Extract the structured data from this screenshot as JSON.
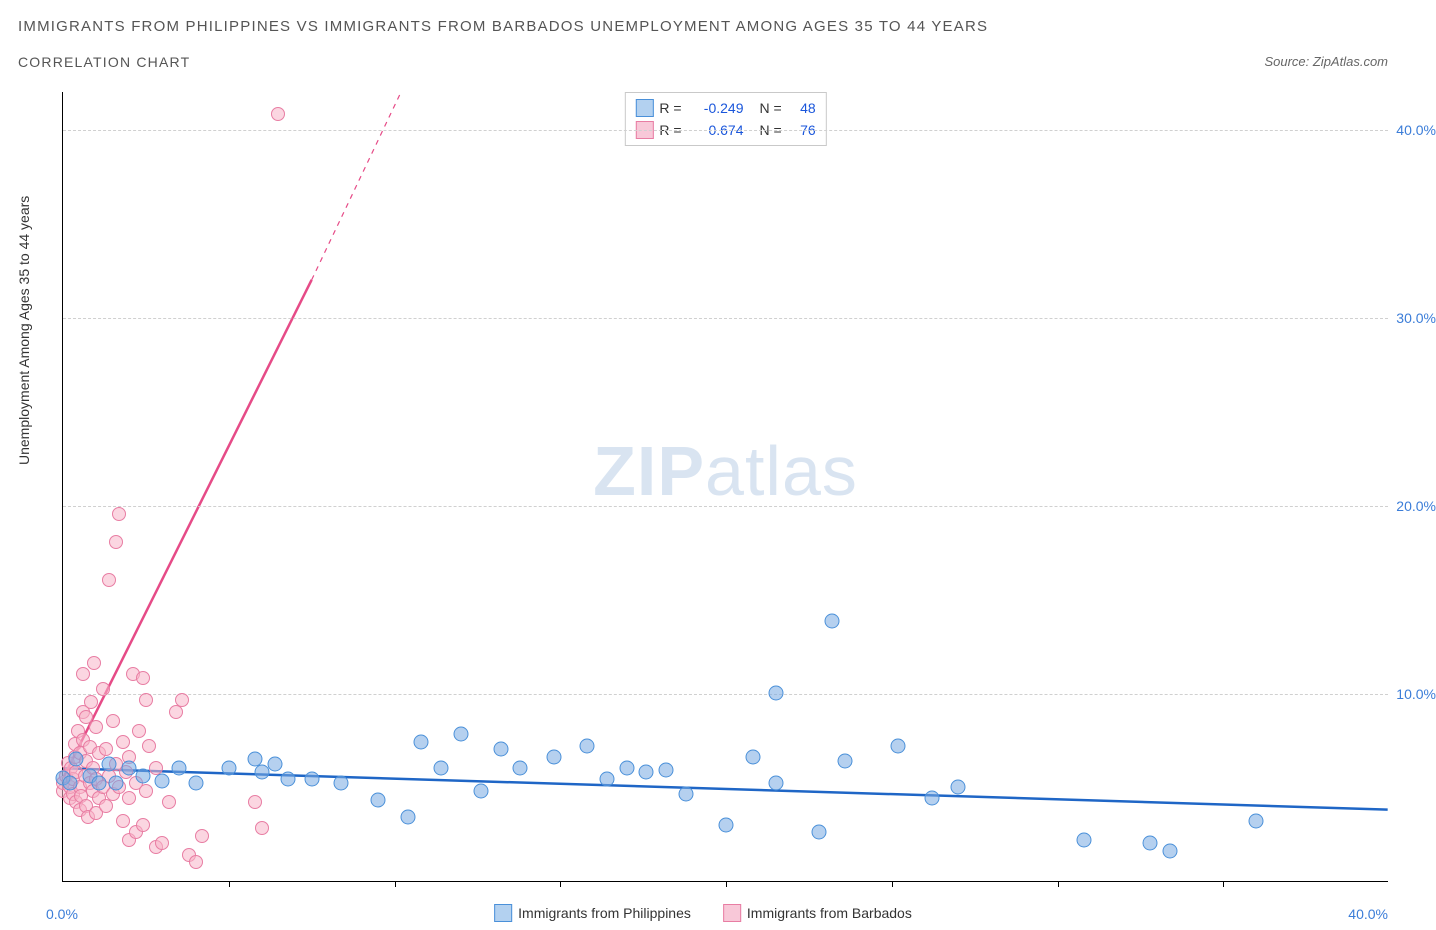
{
  "title_main": "IMMIGRANTS FROM PHILIPPINES VS IMMIGRANTS FROM BARBADOS UNEMPLOYMENT AMONG AGES 35 TO 44 YEARS",
  "title_sub": "CORRELATION CHART",
  "source_label": "Source: ZipAtlas.com",
  "y_axis_label": "Unemployment Among Ages 35 to 44 years",
  "axes": {
    "xmin": 0,
    "xmax": 40,
    "ymin": 0,
    "ymax": 42,
    "x_origin_label": "0.0%",
    "x_end_label": "40.0%",
    "y_ticks": [
      {
        "value": 10,
        "label": "10.0%"
      },
      {
        "value": 20,
        "label": "20.0%"
      },
      {
        "value": 30,
        "label": "30.0%"
      },
      {
        "value": 40,
        "label": "40.0%"
      }
    ],
    "x_tick_positions": [
      5,
      10,
      15,
      20,
      25,
      30,
      35
    ],
    "grid_color": "#d0d0d0",
    "axis_color": "#000000",
    "background_color": "#ffffff"
  },
  "legend_stats": {
    "label_r": "R =",
    "label_n": "N =",
    "series": [
      {
        "swatch": "blue",
        "r": "-0.249",
        "n": "48"
      },
      {
        "swatch": "pink",
        "r": "0.674",
        "n": "76"
      }
    ]
  },
  "bottom_legend": [
    {
      "swatch": "blue",
      "label": "Immigrants from Philippines"
    },
    {
      "swatch": "pink",
      "label": "Immigrants from Barbados"
    }
  ],
  "colors": {
    "blue_fill": "#b3d1f0",
    "blue_stroke": "#4a90d9",
    "blue_line": "#1f66c6",
    "pink_fill": "#f8c8d8",
    "pink_stroke": "#e87da3",
    "pink_line": "#e64b87",
    "tick_label": "#3b7dd8",
    "stat_value": "#1a56db",
    "text": "#333333",
    "watermark": "#d9e4f1"
  },
  "trend_lines": {
    "blue": {
      "x1": 0,
      "y1": 6.0,
      "x2": 40,
      "y2": 3.8,
      "stroke_width": 2.5
    },
    "pink_solid": {
      "x1": 0,
      "y1": 5.5,
      "x2": 7.5,
      "y2": 32.0,
      "stroke_width": 2.5
    },
    "pink_dashed": {
      "x1": 7.5,
      "y1": 32.0,
      "x2": 10.2,
      "y2": 42.0,
      "stroke_width": 1.2,
      "dash": "5,5"
    }
  },
  "series_blue": {
    "marker_color": "#b3d1f0",
    "marker_border": "#4a90d9",
    "marker_size": 15,
    "points": [
      [
        0.0,
        5.5
      ],
      [
        0.2,
        5.2
      ],
      [
        0.4,
        6.5
      ],
      [
        0.8,
        5.6
      ],
      [
        1.1,
        5.2
      ],
      [
        1.4,
        6.2
      ],
      [
        1.6,
        5.2
      ],
      [
        2.0,
        6.0
      ],
      [
        2.4,
        5.6
      ],
      [
        3.0,
        5.3
      ],
      [
        3.5,
        6.0
      ],
      [
        4.0,
        5.2
      ],
      [
        5.0,
        6.0
      ],
      [
        5.8,
        6.5
      ],
      [
        6.0,
        5.8
      ],
      [
        6.4,
        6.2
      ],
      [
        6.8,
        5.4
      ],
      [
        7.5,
        5.4
      ],
      [
        8.4,
        5.2
      ],
      [
        9.5,
        4.3
      ],
      [
        10.4,
        3.4
      ],
      [
        10.8,
        7.4
      ],
      [
        11.4,
        6.0
      ],
      [
        12.0,
        7.8
      ],
      [
        12.6,
        4.8
      ],
      [
        13.2,
        7.0
      ],
      [
        13.8,
        6.0
      ],
      [
        14.8,
        6.6
      ],
      [
        15.8,
        7.2
      ],
      [
        16.4,
        5.4
      ],
      [
        17.0,
        6.0
      ],
      [
        17.6,
        5.8
      ],
      [
        18.2,
        5.9
      ],
      [
        18.8,
        4.6
      ],
      [
        20.0,
        3.0
      ],
      [
        20.8,
        6.6
      ],
      [
        21.5,
        10.0
      ],
      [
        21.5,
        5.2
      ],
      [
        22.8,
        2.6
      ],
      [
        23.2,
        13.8
      ],
      [
        23.6,
        6.4
      ],
      [
        25.2,
        7.2
      ],
      [
        26.2,
        4.4
      ],
      [
        27.0,
        5.0
      ],
      [
        30.8,
        2.2
      ],
      [
        32.8,
        2.0
      ],
      [
        33.4,
        1.6
      ],
      [
        36.0,
        3.2
      ]
    ]
  },
  "series_pink": {
    "marker_color": "#f8c8d8",
    "marker_border": "#e87da3",
    "marker_size": 14,
    "points": [
      [
        0.0,
        4.8
      ],
      [
        0.0,
        5.2
      ],
      [
        0.1,
        5.6
      ],
      [
        0.15,
        6.3
      ],
      [
        0.2,
        4.4
      ],
      [
        0.2,
        5.0
      ],
      [
        0.25,
        6.0
      ],
      [
        0.3,
        4.6
      ],
      [
        0.3,
        5.4
      ],
      [
        0.35,
        6.6
      ],
      [
        0.35,
        7.3
      ],
      [
        0.4,
        4.2
      ],
      [
        0.4,
        5.8
      ],
      [
        0.45,
        8.0
      ],
      [
        0.5,
        3.8
      ],
      [
        0.5,
        5.0
      ],
      [
        0.5,
        6.8
      ],
      [
        0.55,
        4.5
      ],
      [
        0.6,
        7.5
      ],
      [
        0.6,
        9.0
      ],
      [
        0.6,
        11.0
      ],
      [
        0.65,
        5.6
      ],
      [
        0.7,
        4.0
      ],
      [
        0.7,
        6.4
      ],
      [
        0.7,
        8.7
      ],
      [
        0.75,
        3.4
      ],
      [
        0.8,
        5.2
      ],
      [
        0.8,
        7.1
      ],
      [
        0.85,
        9.5
      ],
      [
        0.9,
        4.8
      ],
      [
        0.9,
        6.0
      ],
      [
        0.95,
        11.6
      ],
      [
        1.0,
        3.6
      ],
      [
        1.0,
        5.4
      ],
      [
        1.0,
        8.2
      ],
      [
        1.1,
        4.4
      ],
      [
        1.1,
        6.8
      ],
      [
        1.2,
        5.0
      ],
      [
        1.2,
        10.2
      ],
      [
        1.3,
        4.0
      ],
      [
        1.3,
        7.0
      ],
      [
        1.4,
        5.6
      ],
      [
        1.4,
        16.0
      ],
      [
        1.5,
        4.6
      ],
      [
        1.5,
        8.5
      ],
      [
        1.6,
        6.2
      ],
      [
        1.6,
        18.0
      ],
      [
        1.7,
        5.0
      ],
      [
        1.7,
        19.5
      ],
      [
        1.8,
        3.2
      ],
      [
        1.8,
        7.4
      ],
      [
        1.9,
        5.8
      ],
      [
        2.0,
        2.2
      ],
      [
        2.0,
        4.4
      ],
      [
        2.0,
        6.6
      ],
      [
        2.1,
        11.0
      ],
      [
        2.2,
        2.6
      ],
      [
        2.2,
        5.2
      ],
      [
        2.3,
        8.0
      ],
      [
        2.4,
        3.0
      ],
      [
        2.4,
        10.8
      ],
      [
        2.5,
        4.8
      ],
      [
        2.5,
        9.6
      ],
      [
        2.6,
        7.2
      ],
      [
        2.8,
        1.8
      ],
      [
        2.8,
        6.0
      ],
      [
        3.0,
        2.0
      ],
      [
        3.2,
        4.2
      ],
      [
        3.4,
        9.0
      ],
      [
        3.6,
        9.6
      ],
      [
        3.8,
        1.4
      ],
      [
        4.0,
        1.0
      ],
      [
        4.2,
        2.4
      ],
      [
        5.8,
        4.2
      ],
      [
        6.0,
        2.8
      ],
      [
        6.5,
        40.8
      ]
    ]
  },
  "watermark": {
    "bold": "ZIP",
    "light": "atlas"
  }
}
